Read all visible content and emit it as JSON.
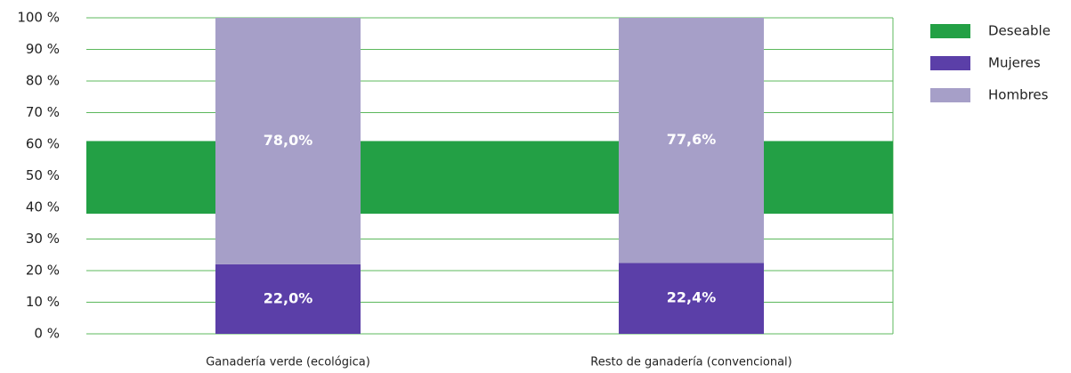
{
  "chart_data": {
    "type": "stacked_bar",
    "categories": [
      "Ganadería verde (ecológica)",
      "Resto de ganadería (convencional)"
    ],
    "series": [
      {
        "name": "Mujeres",
        "color": "#5b3fa8",
        "values": [
          22.0,
          22.4
        ],
        "value_labels": [
          "22,0%",
          "22,4%"
        ]
      },
      {
        "name": "Hombres",
        "color": "#a69fc8",
        "values": [
          78.0,
          77.6
        ],
        "value_labels": [
          "78,0%",
          "77,6%"
        ]
      }
    ],
    "band": {
      "name": "Deseable",
      "color": "#23a045",
      "range": [
        38,
        61
      ]
    },
    "ylim": [
      0,
      100
    ],
    "yticks": [
      {
        "value": 0,
        "label": "0 %"
      },
      {
        "value": 10,
        "label": "10 %"
      },
      {
        "value": 20,
        "label": "20 %"
      },
      {
        "value": 30,
        "label": "30 %"
      },
      {
        "value": 40,
        "label": "40 %"
      },
      {
        "value": 50,
        "label": "50 %"
      },
      {
        "value": 60,
        "label": "60 %"
      },
      {
        "value": 70,
        "label": "70 %"
      },
      {
        "value": 80,
        "label": "80 %"
      },
      {
        "value": 90,
        "label": "90 %"
      },
      {
        "value": 100,
        "label": "100 %"
      }
    ],
    "grid": true,
    "legend": "right"
  }
}
